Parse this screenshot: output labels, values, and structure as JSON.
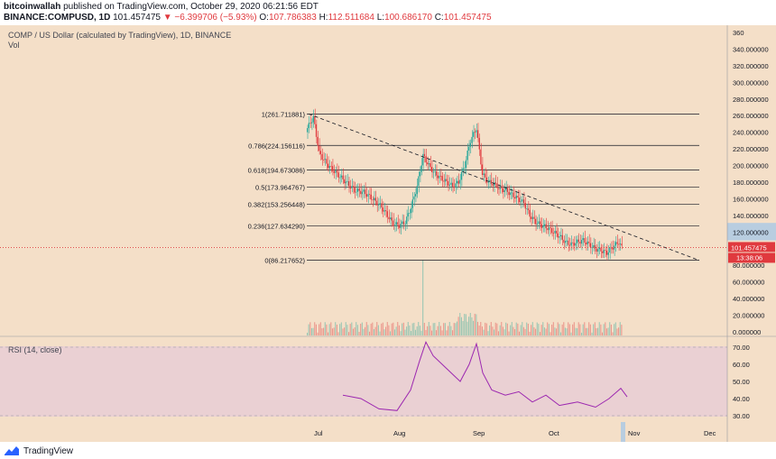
{
  "header": {
    "author": "bitcoinwallah",
    "published_text": " published on TradingView.com, October 29, 2020 06:21:56 EDT",
    "symbol": "BINANCE:COMPUSD, 1D",
    "price": "101.457475",
    "change": "▼ −6.399706 (−5.93%)",
    "o_label": "O:",
    "o_value": "107.786383",
    "h_label": "H:",
    "h_value": "112.511684",
    "l_label": "L:",
    "l_value": "100.686170",
    "c_label": "C:",
    "c_value": "101.457475"
  },
  "legend": {
    "title": "COMP / US Dollar (calculated by TradingView), 1D, BINANCE",
    "volume": "Vol",
    "rsi": "RSI (14, close)"
  },
  "price_axis": {
    "labels": [
      "360",
      "340.000000",
      "320.000000",
      "300.000000",
      "280.000000",
      "260.000000",
      "240.000000",
      "220.000000",
      "200.000000",
      "180.000000",
      "160.000000",
      "140.000000",
      "120.000000",
      "100.000000",
      "80.000000",
      "60.000000",
      "40.000000",
      "20.000000",
      "0.000000"
    ],
    "current_price": "101.457475",
    "countdown": "13:38:06"
  },
  "rsi_axis": {
    "labels": [
      "70.00",
      "60.00",
      "50.00",
      "40.00",
      "30.00"
    ]
  },
  "time_axis": {
    "labels": [
      "Jul",
      "Aug",
      "Sep",
      "Oct",
      "Nov",
      "Dec"
    ]
  },
  "fib_levels": [
    {
      "ratio": "1",
      "value": "261.711881",
      "label": "1(261.711881)"
    },
    {
      "ratio": "0.786",
      "value": "224.156116",
      "label": "0.786(224.156116)"
    },
    {
      "ratio": "0.618",
      "value": "194.673086",
      "label": "0.618(194.673086)"
    },
    {
      "ratio": "0.5",
      "value": "173.964767",
      "label": "0.5(173.964767)"
    },
    {
      "ratio": "0.382",
      "value": "153.256448",
      "label": "0.382(153.256448)"
    },
    {
      "ratio": "0.236",
      "value": "127.634290",
      "label": "0.236(127.634290)"
    },
    {
      "ratio": "0",
      "value": "86.217652",
      "label": "0(86.217652)"
    }
  ],
  "footer": {
    "brand": "TradingView"
  },
  "colors": {
    "bg": "#f4dfc8",
    "rsi_bg": "#ead0d3",
    "up": "#26a69a",
    "down": "#e0393e",
    "rsi_line": "#9c27b0",
    "price_badge": "#e0393e",
    "highlight_band": "#b8cde0"
  }
}
